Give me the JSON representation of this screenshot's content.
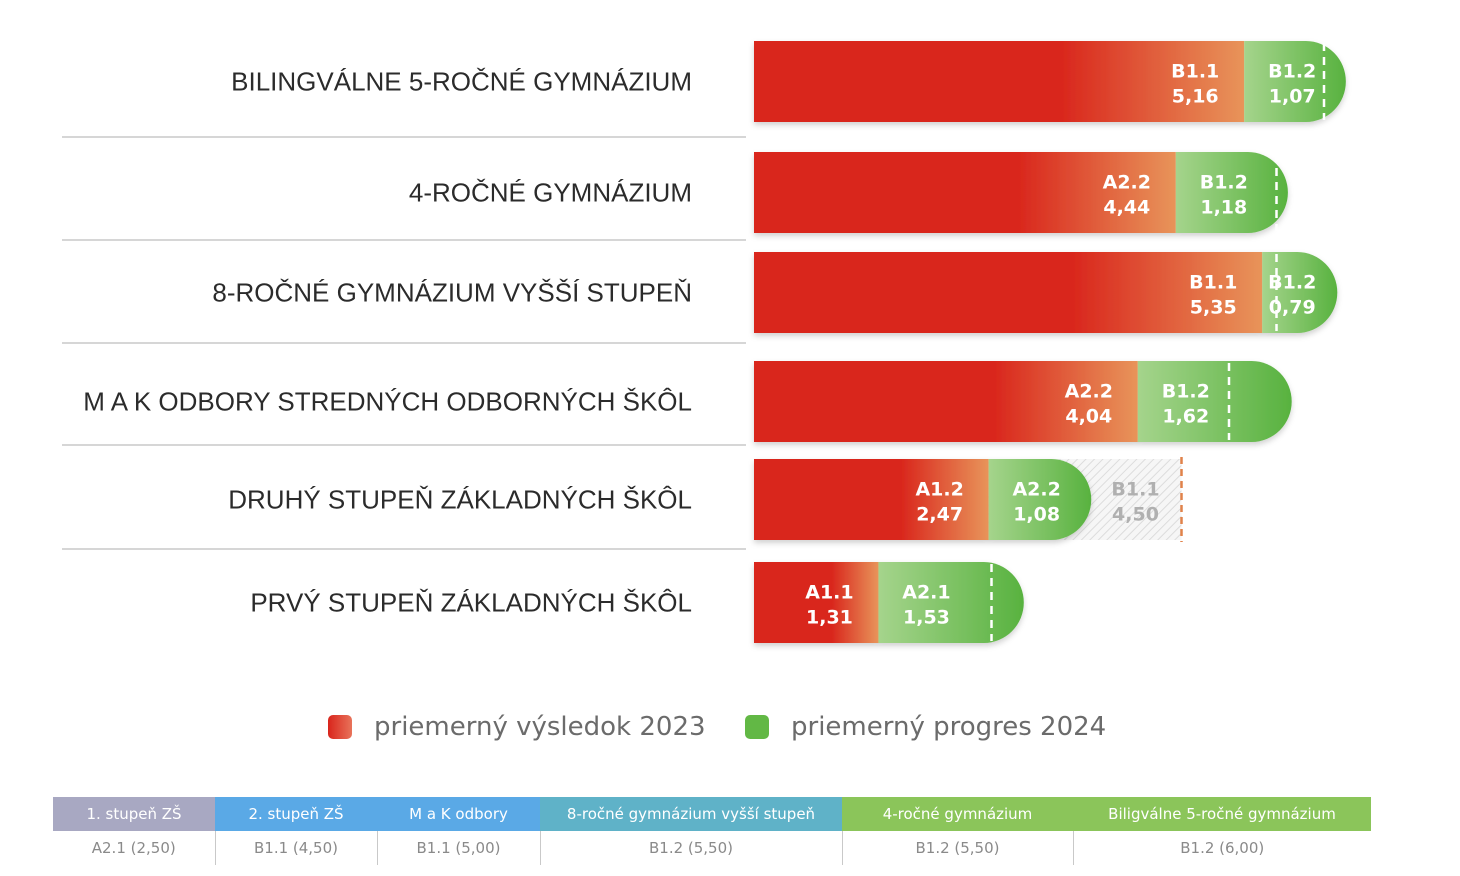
{
  "chart_data": {
    "type": "bar",
    "orientation": "horizontal",
    "stacked": true,
    "categories": [
      "BILINGVÁLNE 5-ROČNÉ GYMNÁZIUM",
      "4-ROČNÉ GYMNÁZIUM",
      "8-ROČNÉ GYMNÁZIUM VYŠŠÍ STUPEŇ",
      "M A K ODBORY STREDNÝCH ODBORNÝCH ŠKÔL",
      "DRUHÝ STUPEŇ ZÁKLADNÝCH ŠKÔL",
      "PRVÝ STUPEŇ ZÁKLADNÝCH ŠKÔL"
    ],
    "series": [
      {
        "name": "priemerný výsledok 2023",
        "values": [
          5.16,
          4.44,
          5.35,
          4.04,
          2.47,
          1.31
        ],
        "value_labels": [
          "5,16",
          "4,44",
          "5,35",
          "4,04",
          "2,47",
          "1,31"
        ],
        "level_labels": [
          "B1.1",
          "A2.2",
          "B1.1",
          "A2.2",
          "A1.2",
          "A1.1"
        ]
      },
      {
        "name": "priemerný progres 2024",
        "values": [
          1.07,
          1.18,
          0.79,
          1.62,
          1.08,
          1.53
        ],
        "value_labels": [
          "1,07",
          "1,18",
          "0,79",
          "1,62",
          "1,08",
          "1,53"
        ],
        "level_labels": [
          "B1.2",
          "B1.2",
          "B1.2",
          "B1.2",
          "A2.2",
          "A2.1"
        ]
      }
    ],
    "targets": [
      6.0,
      5.5,
      5.5,
      5.0,
      4.5,
      2.5
    ],
    "ghost_segment": {
      "category_index": 4,
      "level_label": "B1.1",
      "value_label": "4,50"
    },
    "legend_position": "bottom",
    "grid": false,
    "colors": {
      "result_2023_start": "#d9251c",
      "result_2023_end": "#e8945a",
      "progress_2024_start": "#a5d48c",
      "progress_2024_end": "#58b23f",
      "target_marker_green": "#ffffff",
      "target_marker_orange": "#e0824a"
    }
  },
  "legend": {
    "items": [
      {
        "label": "priemerný výsledok 2023",
        "color": "#dd2e1f"
      },
      {
        "label": "priemerný progres 2024",
        "color": "#62b845"
      }
    ]
  },
  "reference_table": {
    "columns": [
      {
        "header": "1. stupeň ZŠ",
        "value": "A2.1 (2,50)",
        "color": "#a8a8c2"
      },
      {
        "header": "2. stupeň ZŠ",
        "value": "B1.1 (4,50)",
        "color": "#5aa9e6"
      },
      {
        "header": "M a K odbory",
        "value": "B1.1 (5,00)",
        "color": "#5aa9e6"
      },
      {
        "header": "8-ročné gymnázium vyšší stupeň",
        "value": "B1.2 (5,50)",
        "color": "#5fb2c8"
      },
      {
        "header": "4-ročné gymnázium",
        "value": "B1.2 (5,50)",
        "color": "#8bc55a"
      },
      {
        "header": "Biligválne 5-ročné gymnázium",
        "value": "B1.2 (6,00)",
        "color": "#8bc55a"
      }
    ]
  }
}
